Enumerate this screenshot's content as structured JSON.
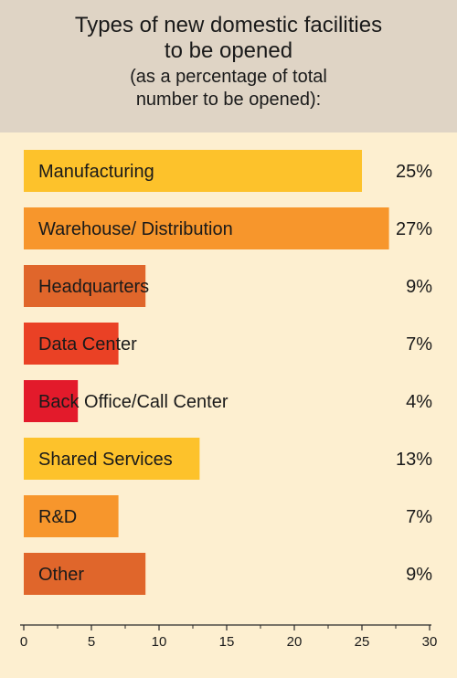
{
  "header": {
    "title_line1": "Types of new domestic facilities",
    "title_line2": "to be opened",
    "subtitle_line1": "(as a percentage of total",
    "subtitle_line2": "number to be opened):"
  },
  "chart_data": {
    "type": "bar",
    "orientation": "horizontal",
    "categories": [
      "Manufacturing",
      "Warehouse/ Distribution",
      "Headquarters",
      "Data Center",
      "Back Office/Call Center",
      "Shared Services",
      "R&D",
      "Other"
    ],
    "values": [
      25,
      27,
      9,
      7,
      4,
      13,
      7,
      9
    ],
    "value_labels": [
      "25%",
      "27%",
      "9%",
      "7%",
      "4%",
      "13%",
      "7%",
      "9%"
    ],
    "colors": [
      "#fdc22b",
      "#f7962c",
      "#e0662b",
      "#ea4125",
      "#e31a2b",
      "#fdc22b",
      "#f7962c",
      "#e0662b"
    ],
    "xlim": [
      0,
      30
    ],
    "xticks": [
      0,
      5,
      10,
      15,
      20,
      25,
      30
    ],
    "grid": false,
    "legend": "none"
  }
}
